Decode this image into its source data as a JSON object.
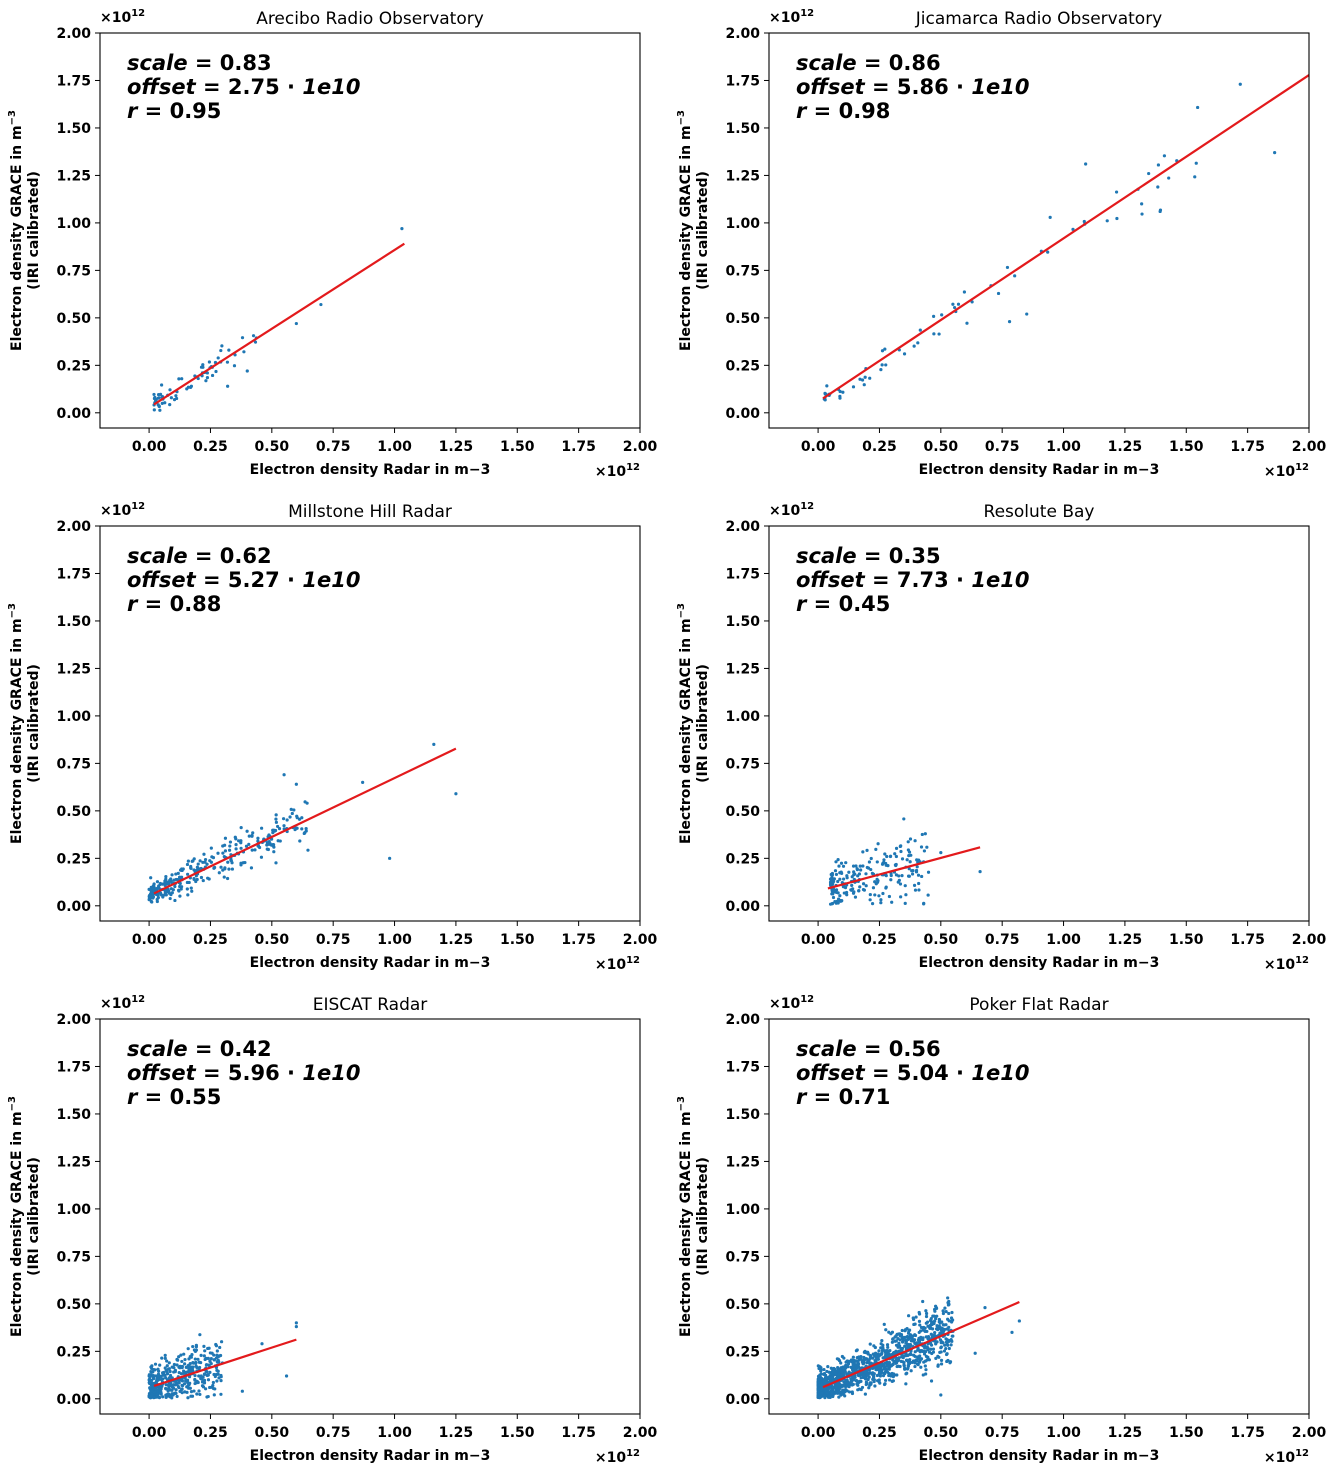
{
  "figure": {
    "xlabel": "Electron density Radar in m−3",
    "ylabel_line1": "Electron density GRACE in m",
    "ylabel_line1_sup": "−3",
    "ylabel_line2": "(IRI calibrated)",
    "multiplier_base": "×10",
    "multiplier_exp": "12",
    "annotation_labels": {
      "scale": "scale",
      "offset": "offset",
      "r": "r",
      "equals": " = ",
      "times": " · "
    },
    "colors": {
      "points": "#1f77b4",
      "fit_line": "#e31a1c",
      "axes": "#000000"
    }
  },
  "chart_data": [
    {
      "type": "scatter",
      "title": "Arecibo Radio Observatory",
      "xlabel": "Electron density Radar in m−3",
      "ylabel": "Electron density GRACE in m−3 (IRI calibrated)",
      "xlim": [
        -0.2,
        2.0
      ],
      "ylim": [
        -0.08,
        2.0
      ],
      "xticks": [
        "0.00",
        "0.25",
        "0.50",
        "0.75",
        "1.00",
        "1.25",
        "1.50",
        "1.75",
        "2.00"
      ],
      "yticks": [
        "0.00",
        "0.25",
        "0.50",
        "0.75",
        "1.00",
        "1.25",
        "1.50",
        "1.75",
        "2.00"
      ],
      "scale": "0.83",
      "offset": "2.75",
      "offset_unit": "1e10",
      "r": "0.95",
      "fit": {
        "slope": 0.83,
        "intercept": 0.0275,
        "x_range": [
          0.02,
          1.04
        ]
      },
      "n_points": 70,
      "x_spread": [
        0.02,
        0.45
      ],
      "outliers": [
        [
          0.6,
          0.47
        ],
        [
          0.7,
          0.57
        ],
        [
          1.03,
          0.97
        ],
        [
          0.4,
          0.22
        ],
        [
          0.32,
          0.14
        ]
      ],
      "seed": 11
    },
    {
      "type": "scatter",
      "title": "Jicamarca Radio Observatory",
      "xlabel": "Electron density Radar in m−3",
      "ylabel": "Electron density GRACE in m−3 (IRI calibrated)",
      "xlim": [
        -0.2,
        2.0
      ],
      "ylim": [
        -0.08,
        2.0
      ],
      "xticks": [
        "0.00",
        "0.25",
        "0.50",
        "0.75",
        "1.00",
        "1.25",
        "1.50",
        "1.75",
        "2.00"
      ],
      "yticks": [
        "0.00",
        "0.25",
        "0.50",
        "0.75",
        "1.00",
        "1.25",
        "1.50",
        "1.75",
        "2.00"
      ],
      "scale": "0.86",
      "offset": "5.86",
      "offset_unit": "1e10",
      "r": "0.98",
      "fit": {
        "slope": 0.86,
        "intercept": 0.0586,
        "x_range": [
          0.02,
          2.0
        ]
      },
      "n_points": 70,
      "x_spread": [
        0.02,
        1.55
      ],
      "outliers": [
        [
          1.72,
          1.73
        ],
        [
          1.86,
          1.37
        ],
        [
          1.09,
          1.31
        ],
        [
          0.78,
          0.48
        ],
        [
          0.85,
          0.52
        ]
      ],
      "seed": 23
    },
    {
      "type": "scatter",
      "title": "Millstone Hill Radar",
      "xlabel": "Electron density Radar in m−3",
      "ylabel": "Electron density GRACE in m−3 (IRI calibrated)",
      "xlim": [
        -0.2,
        2.0
      ],
      "ylim": [
        -0.08,
        2.0
      ],
      "xticks": [
        "0.00",
        "0.25",
        "0.50",
        "0.75",
        "1.00",
        "1.25",
        "1.50",
        "1.75",
        "2.00"
      ],
      "yticks": [
        "0.00",
        "0.25",
        "0.50",
        "0.75",
        "1.00",
        "1.25",
        "1.50",
        "1.75",
        "2.00"
      ],
      "scale": "0.62",
      "offset": "5.27",
      "offset_unit": "1e10",
      "r": "0.88",
      "fit": {
        "slope": 0.62,
        "intercept": 0.0527,
        "x_range": [
          0.02,
          1.25
        ]
      },
      "n_points": 300,
      "x_spread": [
        0.0,
        0.65
      ],
      "outliers": [
        [
          1.16,
          0.85
        ],
        [
          1.25,
          0.59
        ],
        [
          0.98,
          0.25
        ],
        [
          0.87,
          0.65
        ],
        [
          0.55,
          0.69
        ],
        [
          0.6,
          0.64
        ]
      ],
      "seed": 37
    },
    {
      "type": "scatter",
      "title": "Resolute Bay",
      "xlabel": "Electron density Radar in m−3",
      "ylabel": "Electron density GRACE in m−3 (IRI calibrated)",
      "xlim": [
        -0.2,
        2.0
      ],
      "ylim": [
        -0.08,
        2.0
      ],
      "xticks": [
        "0.00",
        "0.25",
        "0.50",
        "0.75",
        "1.00",
        "1.25",
        "1.50",
        "1.75",
        "2.00"
      ],
      "yticks": [
        "0.00",
        "0.25",
        "0.50",
        "0.75",
        "1.00",
        "1.25",
        "1.50",
        "1.75",
        "2.00"
      ],
      "scale": "0.35",
      "offset": "7.73",
      "offset_unit": "1e10",
      "r": "0.45",
      "fit": {
        "slope": 0.35,
        "intercept": 0.0773,
        "x_range": [
          0.04,
          0.66
        ]
      },
      "n_points": 220,
      "x_spread": [
        0.05,
        0.45
      ],
      "outliers": [
        [
          0.66,
          0.18
        ],
        [
          0.5,
          0.28
        ],
        [
          0.43,
          0.01
        ]
      ],
      "seed": 53
    },
    {
      "type": "scatter",
      "title": "EISCAT Radar",
      "xlabel": "Electron density Radar in m−3",
      "ylabel": "Electron density GRACE in m−3 (IRI calibrated)",
      "xlim": [
        -0.2,
        2.0
      ],
      "ylim": [
        -0.08,
        2.0
      ],
      "xticks": [
        "0.00",
        "0.25",
        "0.50",
        "0.75",
        "1.00",
        "1.25",
        "1.50",
        "1.75",
        "2.00"
      ],
      "yticks": [
        "0.00",
        "0.25",
        "0.50",
        "0.75",
        "1.00",
        "1.25",
        "1.50",
        "1.75",
        "2.00"
      ],
      "scale": "0.42",
      "offset": "5.96",
      "offset_unit": "1e10",
      "r": "0.55",
      "fit": {
        "slope": 0.42,
        "intercept": 0.0596,
        "x_range": [
          0.02,
          0.6
        ]
      },
      "n_points": 420,
      "x_spread": [
        0.0,
        0.3
      ],
      "outliers": [
        [
          0.6,
          0.4
        ],
        [
          0.6,
          0.38
        ],
        [
          0.56,
          0.12
        ],
        [
          0.46,
          0.29
        ],
        [
          0.38,
          0.04
        ]
      ],
      "seed": 71
    },
    {
      "type": "scatter",
      "title": "Poker Flat Radar",
      "xlabel": "Electron density Radar in m−3",
      "ylabel": "Electron density GRACE in m−3 (IRI calibrated)",
      "xlim": [
        -0.2,
        2.0
      ],
      "ylim": [
        -0.08,
        2.0
      ],
      "xticks": [
        "0.00",
        "0.25",
        "0.50",
        "0.75",
        "1.00",
        "1.25",
        "1.50",
        "1.75",
        "2.00"
      ],
      "yticks": [
        "0.00",
        "0.25",
        "0.50",
        "0.75",
        "1.00",
        "1.25",
        "1.50",
        "1.75",
        "2.00"
      ],
      "scale": "0.56",
      "offset": "5.04",
      "offset_unit": "1e10",
      "r": "0.71",
      "fit": {
        "slope": 0.56,
        "intercept": 0.0504,
        "x_range": [
          0.02,
          0.82
        ]
      },
      "n_points": 1200,
      "x_spread": [
        0.0,
        0.55
      ],
      "outliers": [
        [
          0.82,
          0.41
        ],
        [
          0.79,
          0.35
        ],
        [
          0.68,
          0.48
        ],
        [
          0.64,
          0.24
        ],
        [
          0.5,
          0.02
        ]
      ],
      "seed": 97
    }
  ]
}
